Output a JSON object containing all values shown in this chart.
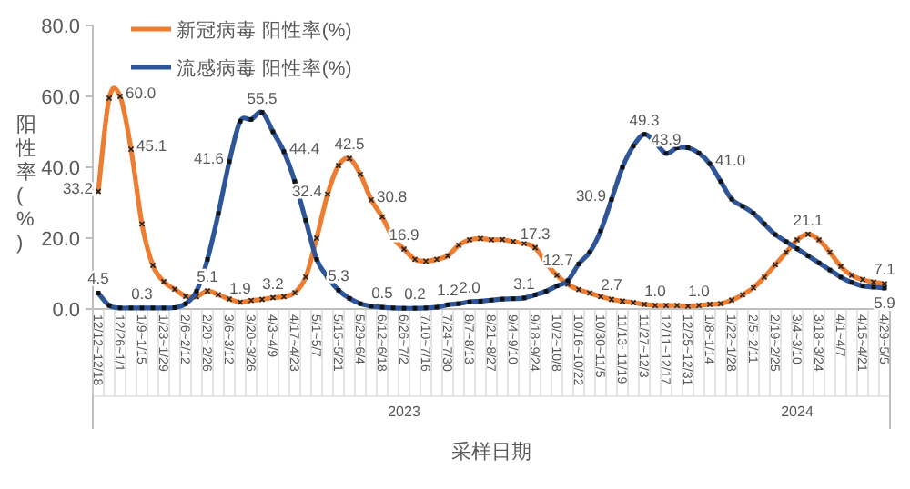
{
  "chart_data": {
    "type": "line",
    "ylabel": "阳性率(%)",
    "xlabel": "采样日期",
    "categories": [
      "12/12~12/18",
      null,
      "12/26~1/1",
      null,
      "1/9~1/15",
      null,
      "1/23~1/29",
      null,
      "2/6~2/12",
      null,
      "2/20~2/26",
      null,
      "3/6~3/12",
      null,
      "3/20~3/26",
      null,
      "4/3~4/9",
      null,
      "4/17~4/23",
      null,
      "5/1~5/7",
      null,
      "5/15~5/21",
      null,
      "5/29~6/4",
      null,
      "6/12~6/18",
      null,
      "6/26~7/2",
      null,
      "7/10~7/16",
      null,
      "7/24~7/30",
      null,
      "8/7~8/13",
      null,
      "8/21~8/27",
      null,
      "9/4~9/10",
      null,
      "9/18~9/24",
      null,
      "10/2~10/8",
      null,
      "10/16~10/22",
      null,
      "10/30~11/5",
      null,
      "11/13~11/19",
      null,
      "11/27~12/3",
      null,
      "12/11~12/17",
      null,
      "12/25~12/31",
      null,
      "1/8~1/14",
      null,
      "1/22~1/28",
      null,
      "2/5~2/11",
      null,
      "2/19~2/25",
      null,
      "3/4~3/10",
      null,
      "3/18~3/24",
      null,
      "4/1~4/7",
      null,
      "4/15~4/21",
      null,
      "4/29~5/5"
    ],
    "series": [
      {
        "name": "新冠病毒 阳性率(%)",
        "color": "#ed7d31",
        "marker": "cross",
        "values": [
          33.2,
          59.5,
          60.0,
          45.1,
          24,
          12.3,
          7.7,
          5.6,
          3.6,
          3.5,
          5.1,
          4,
          2.8,
          1.9,
          2.4,
          2.7,
          3.2,
          3.5,
          4.6,
          9,
          20,
          32.4,
          40.5,
          42.5,
          38,
          30.8,
          26,
          20,
          16.9,
          14,
          13.5,
          14,
          15,
          18,
          19.5,
          19.9,
          19.5,
          19.6,
          19,
          18.5,
          17.3,
          13,
          9.5,
          7,
          5.5,
          4.5,
          3.5,
          2.7,
          2.2,
          1.8,
          1.3,
          1.0,
          1.0,
          1.0,
          0.8,
          1.0,
          1.3,
          1.5,
          2.5,
          4,
          6,
          9,
          12.5,
          16,
          19.5,
          21.1,
          19.5,
          16,
          12,
          9.5,
          8.3,
          7.6,
          7.1
        ],
        "value_labels": [
          "33.2",
          null,
          "60.0",
          "45.1",
          null,
          null,
          null,
          null,
          null,
          null,
          "5.1",
          null,
          null,
          "1.9",
          null,
          null,
          "3.2",
          null,
          null,
          null,
          null,
          "32.4",
          null,
          "42.5",
          null,
          "30.8",
          null,
          null,
          "16.9",
          null,
          null,
          null,
          null,
          null,
          null,
          null,
          null,
          null,
          null,
          null,
          "17.3",
          null,
          null,
          null,
          null,
          null,
          null,
          "2.7",
          null,
          null,
          null,
          "1.0",
          null,
          null,
          null,
          "1.0",
          null,
          null,
          null,
          null,
          null,
          null,
          null,
          null,
          null,
          "21.1",
          null,
          null,
          null,
          null,
          null,
          null,
          "7.1"
        ]
      },
      {
        "name": "流感病毒 阳性率(%)",
        "color": "#2e5597",
        "marker": "square",
        "values": [
          4.5,
          1,
          0.3,
          0.3,
          0.3,
          0.3,
          0.3,
          0.4,
          1.5,
          5,
          14,
          27,
          41.6,
          53,
          53.5,
          55.5,
          50,
          44.4,
          36,
          25,
          14,
          9,
          5.3,
          3,
          1.5,
          0.8,
          0.5,
          0.3,
          0.2,
          0.2,
          0.3,
          0.5,
          1.2,
          1.5,
          2.0,
          2.2,
          2.5,
          2.8,
          2.9,
          3.1,
          4,
          5,
          6.5,
          8,
          12.7,
          16,
          22,
          30.9,
          40,
          46,
          49.3,
          47,
          43.9,
          45.5,
          45.5,
          44,
          41.0,
          36,
          31,
          29,
          27,
          24,
          21,
          19,
          17,
          15,
          13,
          11,
          9,
          7.5,
          6.5,
          6.2,
          5.9
        ],
        "value_labels": [
          "4.5",
          null,
          null,
          null,
          "0.3",
          null,
          null,
          null,
          null,
          null,
          null,
          null,
          "41.6",
          null,
          null,
          "55.5",
          null,
          "44.4",
          null,
          null,
          null,
          null,
          "5.3",
          null,
          null,
          null,
          "0.5",
          null,
          null,
          "0.2",
          null,
          null,
          "1.2",
          null,
          "2.0",
          null,
          null,
          null,
          null,
          "3.1",
          null,
          null,
          null,
          null,
          "12.7",
          null,
          null,
          "30.9",
          null,
          null,
          "49.3",
          null,
          "43.9",
          null,
          null,
          null,
          "41.0",
          null,
          null,
          null,
          null,
          null,
          null,
          null,
          null,
          null,
          null,
          null,
          null,
          null,
          null,
          null,
          "5.9"
        ]
      }
    ],
    "ylim": [
      0,
      80
    ],
    "yticks": [
      {
        "value": 0,
        "label": "0.0"
      },
      {
        "value": 20,
        "label": "20.0"
      },
      {
        "value": 40,
        "label": "40.0"
      },
      {
        "value": 60,
        "label": "60.0"
      },
      {
        "value": 80,
        "label": "80.0"
      }
    ],
    "legend": "top left",
    "grid": false,
    "line_style": "solid",
    "annotations": [
      {
        "text": "2023",
        "x": "6/26~7/2"
      },
      {
        "text": "2024",
        "x": "3/4~3/10"
      }
    ]
  }
}
